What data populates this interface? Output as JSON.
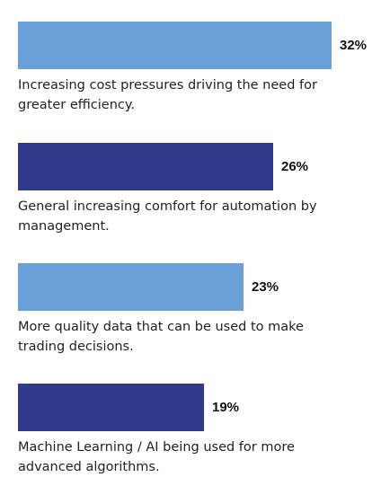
{
  "chart_data": {
    "type": "bar",
    "orientation": "horizontal",
    "categories": [
      "Increasing cost pressures driving the need for greater efficiency.",
      "General increasing comfort for automation by management.",
      "More quality data that can be used to make trading decisions.",
      "Machine Learning / AI being used for more advanced algorithms."
    ],
    "values": [
      32,
      26,
      23,
      19
    ],
    "value_labels": [
      "32%",
      "26%",
      "23%",
      "19%"
    ],
    "bar_colors": [
      "#6a9fd8",
      "#323a8c",
      "#6a9fd8",
      "#323a8c"
    ],
    "xlim": [
      0,
      32
    ],
    "grid": false,
    "legend": "none"
  }
}
